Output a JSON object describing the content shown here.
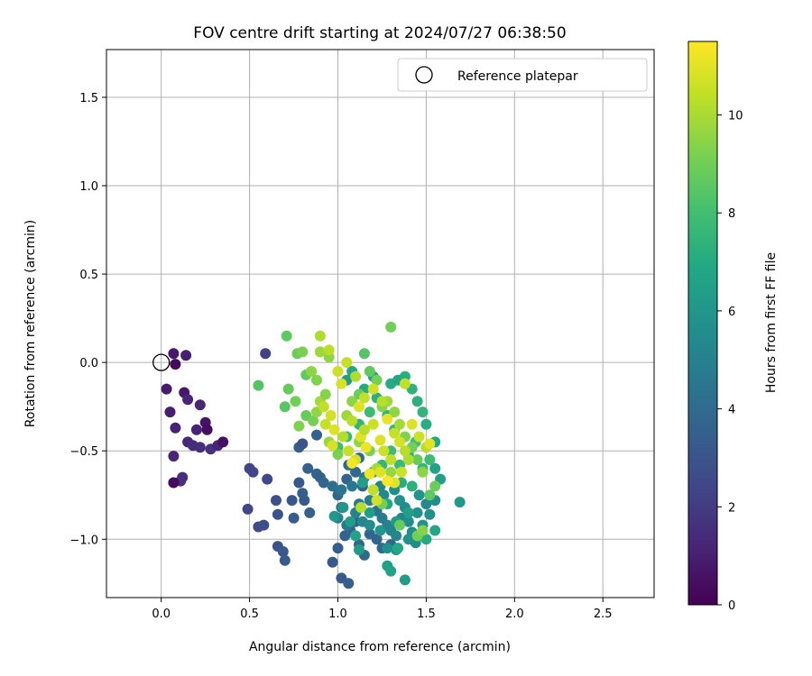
{
  "chart_data": {
    "type": "scatter",
    "title": "FOV centre drift starting at 2024/07/27 06:38:50",
    "xlabel": "Angular distance from reference (arcmin)",
    "ylabel": "Rotation from reference (arcmin)",
    "xlim": [
      -0.31,
      2.79
    ],
    "ylim": [
      -1.33,
      1.77
    ],
    "xticks": [
      "0.0",
      "0.5",
      "1.0",
      "1.5",
      "2.0",
      "2.5"
    ],
    "yticks": [
      "−1.0",
      "−0.5",
      "0.0",
      "0.5",
      "1.0",
      "1.5"
    ],
    "grid": true,
    "legend": {
      "placement": "top-right",
      "entries": [
        "Reference platepar"
      ]
    },
    "reference_point": {
      "x": 0.0,
      "y": 0.0,
      "label": "Reference platepar"
    },
    "colorbar": {
      "label": "Hours from first FF file",
      "min": 0,
      "max": 11.5,
      "ticks": [
        "0",
        "2",
        "4",
        "6",
        "8",
        "10"
      ],
      "colormap": "viridis"
    },
    "points_hours_0_2": [
      [
        0.08,
        -0.01,
        0.3
      ],
      [
        0.07,
        0.05,
        0.8
      ],
      [
        0.14,
        0.04,
        1.0
      ],
      [
        0.03,
        -0.15,
        0.9
      ],
      [
        0.05,
        -0.28,
        1.0
      ],
      [
        0.08,
        -0.37,
        1.1
      ],
      [
        0.13,
        -0.17,
        0.8
      ],
      [
        0.15,
        -0.21,
        1.2
      ],
      [
        0.22,
        -0.24,
        1.3
      ],
      [
        0.25,
        -0.34,
        0.6
      ],
      [
        0.26,
        -0.38,
        0.4
      ],
      [
        0.2,
        -0.38,
        1.1
      ],
      [
        0.15,
        -0.45,
        1.3
      ],
      [
        0.18,
        -0.47,
        1.4
      ],
      [
        0.22,
        -0.48,
        1.5
      ],
      [
        0.28,
        -0.49,
        1.6
      ],
      [
        0.32,
        -0.47,
        1.2
      ],
      [
        0.35,
        -0.45,
        0.5
      ],
      [
        0.07,
        -0.53,
        1.2
      ],
      [
        0.12,
        -0.65,
        1.5
      ],
      [
        0.11,
        -0.67,
        1.6
      ],
      [
        0.07,
        -0.68,
        0.3
      ]
    ],
    "points_hours_2_4": [
      [
        0.59,
        0.05,
        2.2
      ],
      [
        0.5,
        -0.6,
        2.3
      ],
      [
        0.52,
        -0.62,
        2.4
      ],
      [
        0.6,
        -0.66,
        2.5
      ],
      [
        0.49,
        -0.83,
        2.5
      ],
      [
        0.55,
        -0.93,
        2.6
      ],
      [
        0.58,
        -0.92,
        2.7
      ],
      [
        0.65,
        -0.78,
        2.8
      ],
      [
        0.66,
        -0.86,
        2.9
      ],
      [
        0.66,
        -1.04,
        3.0
      ],
      [
        0.69,
        -1.07,
        3.1
      ],
      [
        0.7,
        -1.12,
        3.2
      ],
      [
        0.74,
        -0.78,
        3.1
      ],
      [
        0.75,
        -0.88,
        3.3
      ],
      [
        0.78,
        -0.48,
        3.4
      ],
      [
        0.8,
        -0.46,
        3.0
      ],
      [
        0.78,
        -0.68,
        3.2
      ],
      [
        0.8,
        -0.74,
        3.5
      ],
      [
        0.81,
        -0.78,
        3.3
      ],
      [
        0.83,
        -0.6,
        3.6
      ],
      [
        0.84,
        -0.85,
        3.5
      ],
      [
        0.88,
        -0.63,
        3.7
      ],
      [
        0.9,
        -0.65,
        3.4
      ],
      [
        0.92,
        -0.68,
        3.8
      ],
      [
        0.88,
        -0.41,
        3.6
      ],
      [
        0.97,
        -1.13,
        3.2
      ],
      [
        1.0,
        -1.05,
        3.4
      ],
      [
        1.02,
        -1.22,
        3.3
      ],
      [
        1.06,
        -1.25,
        3.5
      ],
      [
        1.04,
        -0.98,
        3.6
      ],
      [
        1.07,
        -0.95,
        3.7
      ],
      [
        1.12,
        -1.03,
        3.8
      ],
      [
        1.15,
        -1.09,
        3.9
      ],
      [
        1.06,
        -0.58,
        3.9
      ],
      [
        1.12,
        -0.54,
        4.0
      ],
      [
        1.0,
        -0.75,
        3.8
      ],
      [
        1.02,
        -0.82,
        3.9
      ],
      [
        1.1,
        -0.9,
        3.6
      ],
      [
        1.18,
        -0.97,
        3.8
      ],
      [
        1.22,
        -1.0,
        3.7
      ],
      [
        1.25,
        -1.05,
        3.9
      ],
      [
        1.3,
        -1.03,
        3.8
      ],
      [
        1.05,
        -0.66,
        3.7
      ],
      [
        1.1,
        -0.62,
        3.9
      ],
      [
        1.14,
        -0.7,
        3.5
      ]
    ],
    "points_hours_4_6": [
      [
        0.97,
        -0.7,
        4.2
      ],
      [
        1.02,
        -0.72,
        4.4
      ],
      [
        1.08,
        -0.7,
        4.5
      ],
      [
        1.12,
        -0.8,
        4.6
      ],
      [
        1.18,
        -0.78,
        4.8
      ],
      [
        1.22,
        -0.84,
        4.3
      ],
      [
        1.25,
        -0.88,
        4.7
      ],
      [
        1.28,
        -0.92,
        4.9
      ],
      [
        1.3,
        -0.95,
        5.1
      ],
      [
        1.33,
        -0.98,
        5.3
      ],
      [
        1.36,
        -0.88,
        5.2
      ],
      [
        1.4,
        -0.9,
        5.5
      ],
      [
        1.42,
        -0.96,
        5.6
      ],
      [
        1.45,
        -0.85,
        5.7
      ],
      [
        1.48,
        -0.92,
        5.8
      ],
      [
        1.5,
        -0.8,
        5.4
      ],
      [
        1.15,
        -0.65,
        4.8
      ],
      [
        1.2,
        -0.62,
        5.0
      ],
      [
        1.24,
        -0.7,
        5.2
      ],
      [
        1.26,
        -0.75,
        5.4
      ],
      [
        1.32,
        -0.72,
        5.6
      ],
      [
        1.35,
        -0.78,
        5.8
      ],
      [
        1.38,
        -0.82,
        5.5
      ],
      [
        1.1,
        -0.85,
        5.0
      ],
      [
        1.14,
        -0.9,
        5.3
      ],
      [
        1.18,
        -0.92,
        5.5
      ],
      [
        1.28,
        -1.05,
        5.7
      ],
      [
        1.33,
        -1.06,
        5.9
      ],
      [
        1.4,
        -1.0,
        5.8
      ],
      [
        1.44,
        -1.02,
        5.6
      ],
      [
        1.05,
        -0.92,
        4.6
      ],
      [
        1.0,
        -0.88,
        4.9
      ],
      [
        1.46,
        -0.75,
        5.9
      ],
      [
        1.52,
        -0.86,
        5.7
      ],
      [
        1.55,
        -0.78,
        5.5
      ]
    ],
    "points_hours_6_8": [
      [
        1.05,
        -0.1,
        6.4
      ],
      [
        1.2,
        -0.08,
        6.7
      ],
      [
        1.3,
        -0.12,
        7.0
      ],
      [
        1.34,
        -0.1,
        6.8
      ],
      [
        1.38,
        -0.08,
        7.2
      ],
      [
        1.42,
        -0.15,
        7.4
      ],
      [
        1.45,
        -0.22,
        7.3
      ],
      [
        1.48,
        -0.28,
        7.5
      ],
      [
        1.5,
        -0.35,
        7.1
      ],
      [
        1.55,
        -0.45,
        6.9
      ],
      [
        1.55,
        -0.6,
        6.6
      ],
      [
        1.58,
        -0.66,
        6.5
      ],
      [
        1.69,
        -0.79,
        6.2
      ],
      [
        1.55,
        -0.95,
        6.8
      ],
      [
        1.5,
        -1.0,
        7.0
      ],
      [
        1.46,
        -0.98,
        7.2
      ],
      [
        1.38,
        -1.23,
        6.3
      ],
      [
        1.28,
        -1.15,
        6.5
      ],
      [
        1.3,
        -1.18,
        6.6
      ],
      [
        1.34,
        -1.05,
        6.9
      ],
      [
        1.12,
        -1.06,
        6.2
      ],
      [
        1.07,
        -0.9,
        6.4
      ],
      [
        1.03,
        -0.82,
        6.0
      ],
      [
        0.98,
        -0.87,
        6.1
      ],
      [
        1.1,
        -0.98,
        6.6
      ],
      [
        1.25,
        -0.58,
        7.6
      ],
      [
        1.3,
        -0.5,
        7.8
      ],
      [
        1.35,
        -0.58,
        7.7
      ],
      [
        1.4,
        -0.52,
        7.5
      ],
      [
        1.44,
        -0.45,
        7.9
      ],
      [
        1.32,
        -0.38,
        7.6
      ],
      [
        1.28,
        -0.3,
        7.4
      ],
      [
        1.18,
        -0.28,
        7.8
      ],
      [
        1.12,
        -0.35,
        7.5
      ],
      [
        1.05,
        -0.42,
        7.7
      ],
      [
        1.0,
        -0.48,
        7.9
      ],
      [
        1.22,
        -0.2,
        7.2
      ],
      [
        1.15,
        -0.15,
        7.0
      ],
      [
        1.08,
        -0.05,
        6.8
      ],
      [
        1.14,
        -0.68,
        6.4
      ],
      [
        1.2,
        -0.72,
        6.7
      ],
      [
        1.28,
        -0.8,
        6.9
      ],
      [
        1.36,
        -0.68,
        7.1
      ],
      [
        1.42,
        -0.7,
        7.3
      ],
      [
        1.48,
        -0.6,
        7.6
      ],
      [
        1.52,
        -0.55,
        7.8
      ],
      [
        1.4,
        -0.85,
        6.5
      ],
      [
        1.33,
        -0.9,
        6.2
      ],
      [
        1.24,
        -0.95,
        6.0
      ],
      [
        1.18,
        -0.85,
        6.3
      ]
    ],
    "points_hours_8_10": [
      [
        0.71,
        0.15,
        8.6
      ],
      [
        0.77,
        0.05,
        8.9
      ],
      [
        0.8,
        0.06,
        9.2
      ],
      [
        0.55,
        -0.13,
        8.4
      ],
      [
        0.72,
        -0.15,
        8.8
      ],
      [
        0.76,
        -0.22,
        9.0
      ],
      [
        0.7,
        -0.25,
        8.5
      ],
      [
        0.78,
        -0.36,
        9.3
      ],
      [
        0.82,
        -0.07,
        8.7
      ],
      [
        0.85,
        -0.05,
        9.5
      ],
      [
        0.82,
        -0.3,
        8.8
      ],
      [
        0.86,
        -0.33,
        9.1
      ],
      [
        0.88,
        -0.28,
        9.6
      ],
      [
        0.9,
        -0.22,
        9.9
      ],
      [
        0.93,
        -0.18,
        9.4
      ],
      [
        0.95,
        -0.45,
        9.7
      ],
      [
        1.0,
        -0.52,
        9.2
      ],
      [
        1.05,
        -0.3,
        9.8
      ],
      [
        1.08,
        -0.22,
        9.5
      ],
      [
        1.12,
        -0.18,
        8.9
      ],
      [
        1.15,
        0.05,
        8.4
      ],
      [
        1.18,
        -0.05,
        8.7
      ],
      [
        1.22,
        -0.1,
        9.1
      ],
      [
        1.25,
        -0.25,
        9.4
      ],
      [
        1.28,
        -0.22,
        9.8
      ],
      [
        1.32,
        -0.28,
        9.6
      ],
      [
        1.35,
        -0.35,
        9.9
      ],
      [
        1.38,
        -0.42,
        9.3
      ],
      [
        1.42,
        -0.48,
        9.0
      ],
      [
        1.45,
        -0.55,
        8.8
      ],
      [
        1.48,
        -0.62,
        9.5
      ],
      [
        1.3,
        -0.62,
        9.7
      ],
      [
        1.22,
        -0.6,
        9.9
      ],
      [
        1.18,
        -0.5,
        9.2
      ],
      [
        1.12,
        -0.45,
        9.6
      ],
      [
        1.3,
        0.2,
        9.0
      ],
      [
        0.9,
        0.06,
        9.8
      ],
      [
        0.95,
        0.03,
        9.5
      ],
      [
        0.88,
        -0.1,
        9.3
      ],
      [
        1.25,
        -0.8,
        9.1
      ],
      [
        1.35,
        -0.92,
        8.8
      ],
      [
        1.45,
        -0.98,
        9.0
      ],
      [
        1.48,
        -0.95,
        9.4
      ],
      [
        1.52,
        -0.75,
        8.6
      ],
      [
        1.55,
        -0.7,
        8.9
      ]
    ],
    "points_hours_10_12": [
      [
        0.9,
        0.15,
        10.1
      ],
      [
        0.95,
        0.07,
        10.3
      ],
      [
        1.0,
        -0.05,
        10.6
      ],
      [
        1.02,
        -0.12,
        10.8
      ],
      [
        0.92,
        -0.25,
        10.4
      ],
      [
        0.96,
        -0.3,
        10.7
      ],
      [
        0.98,
        -0.38,
        10.9
      ],
      [
        1.03,
        -0.42,
        10.2
      ],
      [
        1.06,
        -0.5,
        10.5
      ],
      [
        1.1,
        -0.55,
        10.8
      ],
      [
        1.13,
        -0.42,
        11.0
      ],
      [
        1.16,
        -0.48,
        11.2
      ],
      [
        1.2,
        -0.35,
        10.6
      ],
      [
        1.08,
        -0.33,
        10.3
      ],
      [
        1.12,
        -0.25,
        10.9
      ],
      [
        1.15,
        -0.2,
        10.4
      ],
      [
        1.2,
        -0.15,
        10.7
      ],
      [
        1.25,
        -0.22,
        10.2
      ],
      [
        1.28,
        -0.32,
        11.1
      ],
      [
        1.32,
        -0.4,
        10.5
      ],
      [
        1.35,
        -0.45,
        10.8
      ],
      [
        1.38,
        -0.5,
        10.3
      ],
      [
        1.4,
        -0.55,
        10.1
      ],
      [
        1.36,
        -0.62,
        10.6
      ],
      [
        1.32,
        -0.68,
        11.0
      ],
      [
        1.28,
        -0.67,
        11.5
      ],
      [
        1.24,
        -0.62,
        10.9
      ],
      [
        1.2,
        -0.72,
        10.4
      ],
      [
        1.22,
        -0.78,
        10.7
      ],
      [
        1.08,
        -0.57,
        11.3
      ],
      [
        1.13,
        -0.82,
        10.2
      ],
      [
        1.05,
        0.0,
        10.5
      ],
      [
        1.1,
        -0.08,
        10.1
      ],
      [
        1.38,
        -0.12,
        10.4
      ],
      [
        1.42,
        -0.35,
        10.9
      ],
      [
        1.46,
        -0.42,
        10.6
      ],
      [
        1.5,
        -0.48,
        10.2
      ],
      [
        1.52,
        -0.46,
        11.0
      ],
      [
        0.93,
        -0.35,
        10.5
      ],
      [
        0.97,
        -0.47,
        10.8
      ],
      [
        1.18,
        -0.63,
        11.2
      ],
      [
        1.26,
        -0.5,
        10.6
      ],
      [
        1.15,
        -0.38,
        10.3
      ],
      [
        1.24,
        -0.44,
        10.9
      ],
      [
        1.3,
        -0.55,
        10.4
      ]
    ]
  }
}
